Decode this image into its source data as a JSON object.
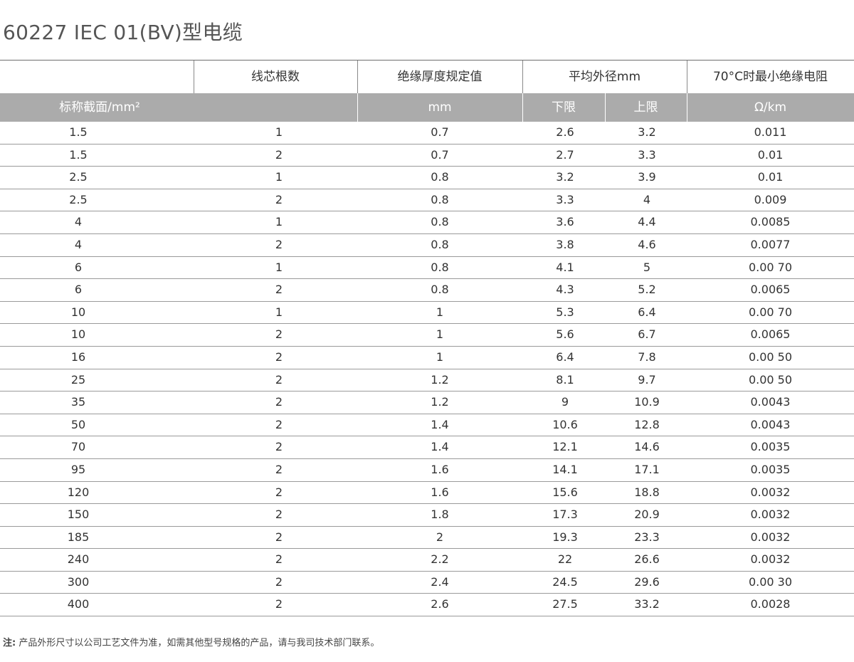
{
  "title": "60227 IEC  01(BV)型电缆",
  "header": {
    "cores": "线芯根数",
    "insulation": "绝缘厚度规定值",
    "diameter": "平均外径mm",
    "resistance": "70°C时最小绝缘电阻",
    "section": "标称截面/mm²",
    "insulation_unit": "mm",
    "lower": "下限",
    "upper": "上限",
    "resistance_unit": "Ω/km"
  },
  "rows": [
    [
      "1.5",
      "1",
      "0.7",
      "2.6",
      "3.2",
      "0.011"
    ],
    [
      "1.5",
      "2",
      "0.7",
      "2.7",
      "3.3",
      "0.01"
    ],
    [
      "2.5",
      "1",
      "0.8",
      "3.2",
      "3.9",
      "0.01"
    ],
    [
      "2.5",
      "2",
      "0.8",
      "3.3",
      "4",
      "0.009"
    ],
    [
      "4",
      "1",
      "0.8",
      "3.6",
      "4.4",
      "0.0085"
    ],
    [
      "4",
      "2",
      "0.8",
      "3.8",
      "4.6",
      "0.0077"
    ],
    [
      "6",
      "1",
      "0.8",
      "4.1",
      "5",
      "0.00 70"
    ],
    [
      "6",
      "2",
      "0.8",
      "4.3",
      "5.2",
      "0.0065"
    ],
    [
      "10",
      "1",
      "1",
      "5.3",
      "6.4",
      "0.00 70"
    ],
    [
      "10",
      "2",
      "1",
      "5.6",
      "6.7",
      "0.0065"
    ],
    [
      "16",
      "2",
      "1",
      "6.4",
      "7.8",
      "0.00 50"
    ],
    [
      "25",
      "2",
      "1.2",
      "8.1",
      "9.7",
      "0.00 50"
    ],
    [
      "35",
      "2",
      "1.2",
      "9",
      "10.9",
      "0.0043"
    ],
    [
      "50",
      "2",
      "1.4",
      "10.6",
      "12.8",
      "0.0043"
    ],
    [
      "70",
      "2",
      "1.4",
      "12.1",
      "14.6",
      "0.0035"
    ],
    [
      "95",
      "2",
      "1.6",
      "14.1",
      "17.1",
      "0.0035"
    ],
    [
      "120",
      "2",
      "1.6",
      "15.6",
      "18.8",
      "0.0032"
    ],
    [
      "150",
      "2",
      "1.8",
      "17.3",
      "20.9",
      "0.0032"
    ],
    [
      "185",
      "2",
      "2",
      "19.3",
      "23.3",
      "0.0032"
    ],
    [
      "240",
      "2",
      "2.2",
      "22",
      "26.6",
      "0.0032"
    ],
    [
      "300",
      "2",
      "2.4",
      "24.5",
      "29.6",
      "0.00 30"
    ],
    [
      "400",
      "2",
      "2.6",
      "27.5",
      "33.2",
      "0.0028"
    ]
  ],
  "footer": {
    "label": "注:",
    "text": " 产品外形尺寸以公司工艺文件为准，如需其他型号规格的产品，请与我司技术部门联系。"
  }
}
